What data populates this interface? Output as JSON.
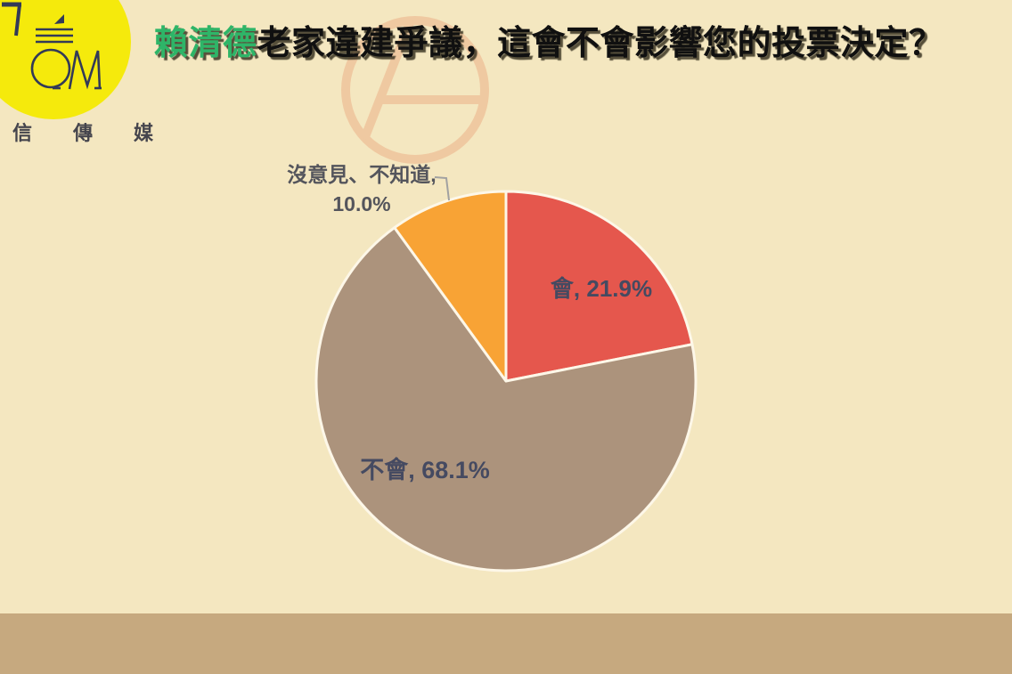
{
  "header": {
    "title_highlight": "賴清德",
    "title_rest": "老家違建爭議，這會不會影響您的投票決定？",
    "highlight_color": "#2eb568",
    "text_color": "#101010"
  },
  "logo": {
    "brand_text": "信傳媒",
    "monogram": "CM",
    "circle_color": "#f5ea0c",
    "glyph_color": "#333a57"
  },
  "watermark": {
    "name": "vote-stamp-symbol",
    "color": "#efc49c"
  },
  "page": {
    "background_color": "#f4e7c0",
    "bottom_bar_color": "#c6a97f"
  },
  "chart_data": {
    "type": "pie",
    "title": "賴清德老家違建爭議，這會不會影響您的投票決定？",
    "unit": "%",
    "start_angle_deg": 0,
    "direction": "clockwise",
    "slice_border_color": "#fdf7e8",
    "label_color_inside": "#454a61",
    "label_color_outside": "#54555c",
    "leader_line_color": "#a1a1a1",
    "series": [
      {
        "label": "會",
        "value": 21.9,
        "display": "會, 21.9%",
        "color": "#e5574d",
        "label_placement": "inside"
      },
      {
        "label": "不會",
        "value": 68.1,
        "display": "不會, 68.1%",
        "color": "#ac937c",
        "label_placement": "inside"
      },
      {
        "label": "沒意見、不知道",
        "value": 10.0,
        "display_line1": "沒意見、不知道,",
        "display_line2": "10.0%",
        "color": "#f8a335",
        "label_placement": "outside"
      }
    ]
  }
}
